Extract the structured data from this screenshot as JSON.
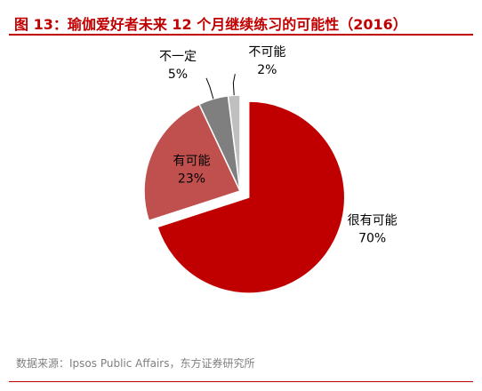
{
  "title": "图 13：瑜伽爱好者未来 12 个月继续练习的可能性（2016）",
  "source": "数据来源：Ipsos Public Affairs，东方证券研究所",
  "chart_data": {
    "type": "pie",
    "slices": [
      {
        "label": "很有可能",
        "value": 70,
        "display": "70%",
        "color": "#c00000",
        "exploded": true
      },
      {
        "label": "有可能",
        "value": 23,
        "display": "23%",
        "color": "#c0504d",
        "exploded": false
      },
      {
        "label": "不一定",
        "value": 5,
        "display": "5%",
        "color": "#7f7f7f",
        "exploded": false
      },
      {
        "label": "不可能",
        "value": 2,
        "display": "2%",
        "color": "#bfbfbf",
        "exploded": false
      }
    ]
  }
}
